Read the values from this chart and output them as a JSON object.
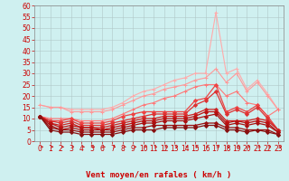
{
  "title": "",
  "xlabel": "Vent moyen/en rafales ( km/h )",
  "bg_color": "#cff0f0",
  "grid_color": "#b0c8c8",
  "xlim": [
    -0.5,
    23.5
  ],
  "ylim": [
    0,
    60
  ],
  "yticks": [
    0,
    5,
    10,
    15,
    20,
    25,
    30,
    35,
    40,
    45,
    50,
    55,
    60
  ],
  "xticks": [
    0,
    1,
    2,
    3,
    4,
    5,
    6,
    7,
    8,
    9,
    10,
    11,
    12,
    13,
    14,
    15,
    16,
    17,
    18,
    19,
    20,
    21,
    22,
    23
  ],
  "series": [
    {
      "color": "#ffaaaa",
      "lw": 0.8,
      "marker": "+",
      "ms": 3,
      "data": [
        16,
        15,
        15,
        14,
        14,
        14,
        14,
        15,
        17,
        20,
        22,
        23,
        25,
        27,
        28,
        30,
        30,
        57,
        30,
        32,
        23,
        27,
        21,
        14
      ]
    },
    {
      "color": "#ff9999",
      "lw": 0.8,
      "marker": "+",
      "ms": 3,
      "data": [
        16,
        15,
        15,
        13,
        13,
        13,
        13,
        14,
        16,
        18,
        20,
        21,
        23,
        24,
        25,
        27,
        28,
        32,
        26,
        30,
        22,
        26,
        20,
        14
      ]
    },
    {
      "color": "#ff7777",
      "lw": 0.8,
      "marker": "+",
      "ms": 3,
      "data": [
        11,
        10,
        10,
        10,
        9,
        9,
        9,
        10,
        12,
        14,
        16,
        17,
        19,
        20,
        22,
        24,
        25,
        25,
        20,
        22,
        17,
        16,
        11,
        14
      ]
    },
    {
      "color": "#ee4444",
      "lw": 0.9,
      "marker": "D",
      "ms": 2,
      "data": [
        11,
        9,
        9,
        10,
        8,
        8,
        8,
        9,
        11,
        12,
        13,
        13,
        13,
        13,
        13,
        18,
        19,
        25,
        13,
        15,
        13,
        16,
        11,
        5
      ]
    },
    {
      "color": "#dd3333",
      "lw": 0.9,
      "marker": "D",
      "ms": 2,
      "data": [
        11,
        9,
        8,
        9,
        7,
        7,
        7,
        8,
        9,
        10,
        11,
        12,
        12,
        12,
        12,
        16,
        18,
        22,
        12,
        14,
        12,
        15,
        10,
        5
      ]
    },
    {
      "color": "#cc2222",
      "lw": 0.9,
      "marker": "D",
      "ms": 2,
      "data": [
        11,
        8,
        7,
        8,
        6,
        6,
        6,
        7,
        8,
        9,
        10,
        10,
        11,
        11,
        11,
        12,
        14,
        14,
        9,
        9,
        9,
        10,
        9,
        5
      ]
    },
    {
      "color": "#bb1111",
      "lw": 0.9,
      "marker": "D",
      "ms": 2,
      "data": [
        11,
        8,
        6,
        7,
        6,
        6,
        5,
        6,
        7,
        8,
        9,
        9,
        10,
        10,
        10,
        11,
        13,
        13,
        8,
        9,
        8,
        9,
        8,
        4
      ]
    },
    {
      "color": "#aa1111",
      "lw": 0.9,
      "marker": "D",
      "ms": 2,
      "data": [
        11,
        7,
        5,
        6,
        5,
        5,
        5,
        5,
        6,
        7,
        8,
        8,
        9,
        9,
        9,
        10,
        11,
        12,
        7,
        8,
        7,
        8,
        7,
        4
      ]
    },
    {
      "color": "#991111",
      "lw": 0.9,
      "marker": "D",
      "ms": 2,
      "data": [
        11,
        6,
        5,
        5,
        4,
        4,
        4,
        4,
        5,
        6,
        6,
        7,
        7,
        7,
        7,
        7,
        8,
        8,
        6,
        6,
        5,
        5,
        5,
        3
      ]
    },
    {
      "color": "#881111",
      "lw": 0.9,
      "marker": "D",
      "ms": 2,
      "data": [
        11,
        5,
        4,
        4,
        3,
        3,
        3,
        3,
        4,
        5,
        5,
        5,
        6,
        6,
        6,
        6,
        7,
        7,
        5,
        5,
        4,
        5,
        4,
        3
      ]
    }
  ],
  "xlabel_fontsize": 6.5,
  "tick_fontsize": 5.5
}
